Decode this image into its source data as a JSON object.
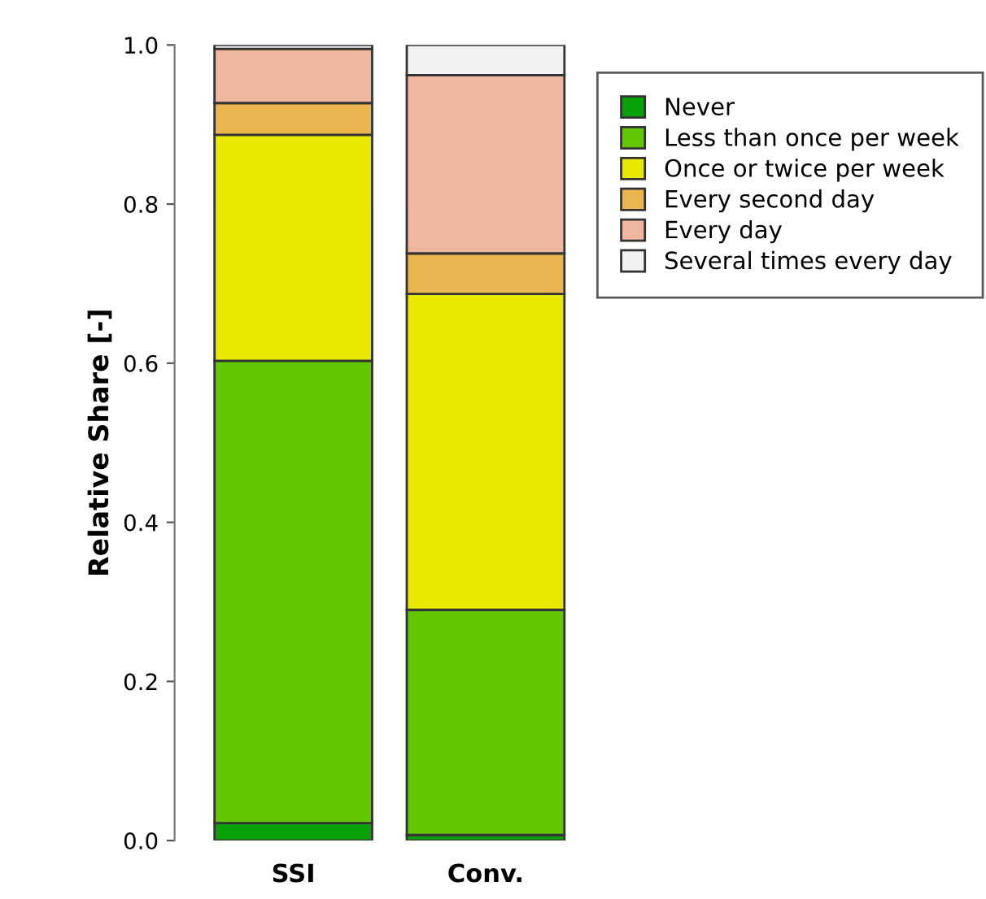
{
  "chart_data": {
    "type": "bar",
    "stacked": true,
    "ylabel": "Relative Share [-]",
    "categories": [
      "SSI",
      "Conv."
    ],
    "series": [
      {
        "name": "Never",
        "color": "#0aa00a",
        "values": [
          0.022,
          0.007
        ]
      },
      {
        "name": "Less than once per week",
        "color": "#62c600",
        "values": [
          0.581,
          0.283
        ]
      },
      {
        "name": "Once or twice per week",
        "color": "#e8e800",
        "values": [
          0.284,
          0.397
        ]
      },
      {
        "name": "Every second day",
        "color": "#eab44e",
        "values": [
          0.04,
          0.051
        ]
      },
      {
        "name": "Every day",
        "color": "#efb79e",
        "values": [
          0.068,
          0.224
        ]
      },
      {
        "name": "Several times every day",
        "color": "#f2f2f2",
        "values": [
          0.005,
          0.038
        ]
      }
    ],
    "ylim": [
      0,
      1
    ],
    "yticks": [
      {
        "value": 0,
        "label": "0.0"
      },
      0.2,
      0.4,
      0.6,
      0.8,
      {
        "value": 1,
        "label": "1.0"
      }
    ],
    "legend": "top right",
    "grid": false
  }
}
